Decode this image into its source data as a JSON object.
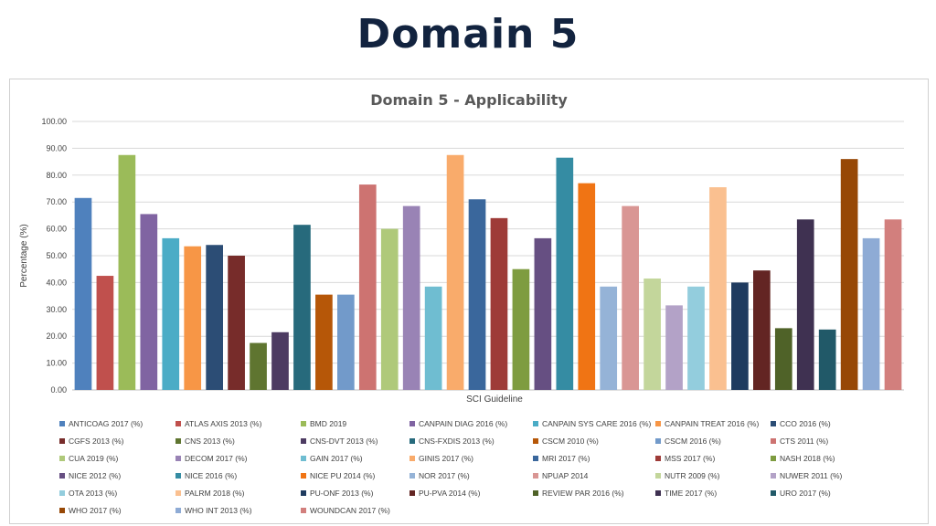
{
  "slide": {
    "title": "Domain 5"
  },
  "chart_data": {
    "type": "bar",
    "title": "Domain 5 - Applicability",
    "xlabel": "SCI Guideline",
    "ylabel": "Percentage (%)",
    "ylim": [
      0,
      100
    ],
    "yticks": [
      "0.00",
      "10.00",
      "20.00",
      "30.00",
      "40.00",
      "50.00",
      "60.00",
      "70.00",
      "80.00",
      "90.00",
      "100.00"
    ],
    "grid": true,
    "legend_position": "bottom",
    "series": [
      {
        "name": "ANTICOAG 2017 (%)",
        "value": 71.5,
        "color": "#4f81bd"
      },
      {
        "name": "ATLAS AXIS 2013 (%)",
        "value": 42.5,
        "color": "#c0504d"
      },
      {
        "name": "BMD 2019",
        "value": 87.5,
        "color": "#9bbb59"
      },
      {
        "name": "CANPAIN DIAG 2016 (%)",
        "value": 65.5,
        "color": "#8064a2"
      },
      {
        "name": "CANPAIN SYS CARE 2016 (%)",
        "value": 56.5,
        "color": "#4bacc6"
      },
      {
        "name": "CANPAIN TREAT 2016 (%)",
        "value": 53.5,
        "color": "#f79646"
      },
      {
        "name": "CCO 2016 (%)",
        "value": 54,
        "color": "#2c4d75"
      },
      {
        "name": "CGFS 2013 (%)",
        "value": 50,
        "color": "#772c2a"
      },
      {
        "name": "CNS 2013 (%)",
        "value": 17.5,
        "color": "#5f7530"
      },
      {
        "name": "CNS-DVT 2013 (%)",
        "value": 21.5,
        "color": "#4d3b62"
      },
      {
        "name": "CNS-FXDIS 2013 (%)",
        "value": 61.5,
        "color": "#276a7c"
      },
      {
        "name": "CSCM 2010 (%)",
        "value": 35.5,
        "color": "#b65708"
      },
      {
        "name": "CSCM 2016 (%)",
        "value": 35.5,
        "color": "#729aca"
      },
      {
        "name": "CTS 2011 (%)",
        "value": 76.5,
        "color": "#cd7371"
      },
      {
        "name": "CUA 2019 (%)",
        "value": 60,
        "color": "#afc97a"
      },
      {
        "name": "DECOM 2017 (%)",
        "value": 68.5,
        "color": "#9983b5"
      },
      {
        "name": "GAIN 2017 (%)",
        "value": 38.5,
        "color": "#6fbdd1"
      },
      {
        "name": "GINIS 2017 (%)",
        "value": 87.5,
        "color": "#f9ab6b"
      },
      {
        "name": "MRI 2017 (%)",
        "value": 71,
        "color": "#3a679c"
      },
      {
        "name": "MSS 2017 (%)",
        "value": 64,
        "color": "#9e3b38"
      },
      {
        "name": "NASH 2018  (%)",
        "value": 45,
        "color": "#7e9c40"
      },
      {
        "name": "NICE 2012  (%)",
        "value": 56.5,
        "color": "#664f82"
      },
      {
        "name": "NICE 2016  (%)",
        "value": 86.5,
        "color": "#358ca3"
      },
      {
        "name": "NICE PU 2014  (%)",
        "value": 77,
        "color": "#f07414"
      },
      {
        "name": "NOR 2017  (%)",
        "value": 38.5,
        "color": "#95b3d7"
      },
      {
        "name": "NPUAP 2014",
        "value": 68.5,
        "color": "#d99694"
      },
      {
        "name": "NUTR 2009  (%)",
        "value": 41.5,
        "color": "#c3d69b"
      },
      {
        "name": "NUWER 2011 (%)",
        "value": 31.5,
        "color": "#b3a2c7"
      },
      {
        "name": "OTA 2013 (%)",
        "value": 38.5,
        "color": "#93cddd"
      },
      {
        "name": "PALRM 2018 (%)",
        "value": 75.5,
        "color": "#fac090"
      },
      {
        "name": "PU-ONF 2013 (%)",
        "value": 40,
        "color": "#1f3b5f"
      },
      {
        "name": "PU-PVA 2014 (%)",
        "value": 44.5,
        "color": "#632523"
      },
      {
        "name": "REVIEW PAR 2016 (%)",
        "value": 23,
        "color": "#4f6228"
      },
      {
        "name": "TIME 2017 (%)",
        "value": 63.5,
        "color": "#3f3151"
      },
      {
        "name": "URO 2017 (%)",
        "value": 22.5,
        "color": "#215968"
      },
      {
        "name": "WHO 2017 (%)",
        "value": 86,
        "color": "#974806"
      },
      {
        "name": "WHO INT 2013 (%)",
        "value": 56.5,
        "color": "#8eabd5"
      },
      {
        "name": "WOUNDCAN 2017 (%)",
        "value": 63.5,
        "color": "#d27f7d"
      }
    ]
  }
}
